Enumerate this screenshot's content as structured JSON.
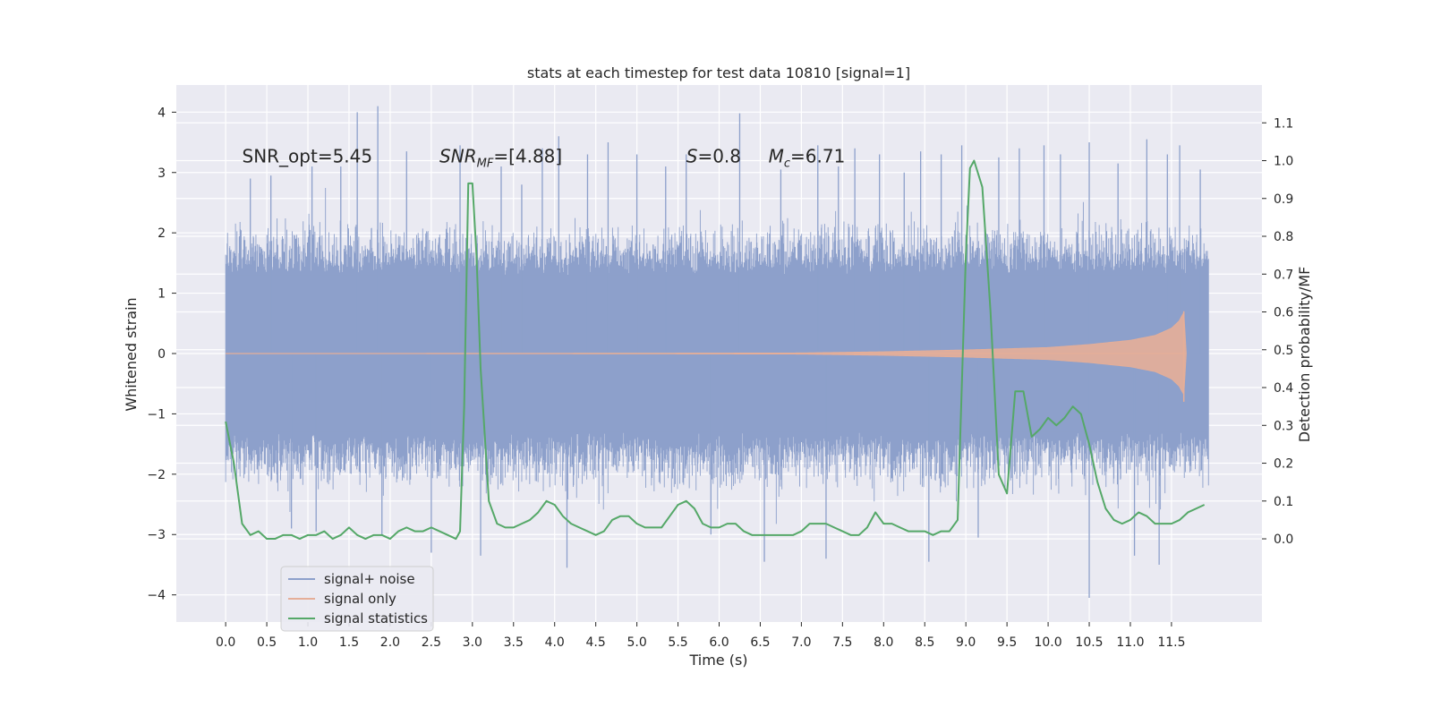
{
  "chart_data": {
    "type": "line",
    "title": "stats at each timestep for test data 10810 [signal=1]",
    "xlabel": "Time (s)",
    "ylabel": "Whitened strain",
    "ylabel_right": "Detection probability/MF",
    "xlim": [
      -0.6,
      12.6
    ],
    "ylim": [
      -4.45,
      4.45
    ],
    "ylim_right": [
      -0.22,
      1.2
    ],
    "x_ticks": [
      0.0,
      0.5,
      1.0,
      1.5,
      2.0,
      2.5,
      3.0,
      3.5,
      4.0,
      4.5,
      5.0,
      5.5,
      6.0,
      6.5,
      7.0,
      7.5,
      8.0,
      8.5,
      9.0,
      9.5,
      10.0,
      10.5,
      11.0,
      11.5
    ],
    "x_tick_labels": [
      "0.0",
      "0.5",
      "1.0",
      "1.5",
      "2.0",
      "2.5",
      "3.0",
      "3.5",
      "4.0",
      "4.5",
      "5.0",
      "5.5",
      "6.0",
      "6.5",
      "7.0",
      "7.5",
      "8.0",
      "8.5",
      "9.0",
      "9.5",
      "10.0",
      "10.5",
      "11.0",
      "11.5"
    ],
    "y_ticks": [
      -4,
      -3,
      -2,
      -1,
      0,
      1,
      2,
      3,
      4
    ],
    "y_tick_labels": [
      "−4",
      "−3",
      "−2",
      "−1",
      "0",
      "1",
      "2",
      "3",
      "4"
    ],
    "y_right_ticks": [
      0.0,
      0.1,
      0.2,
      0.3,
      0.4,
      0.5,
      0.6,
      0.7,
      0.8,
      0.9,
      1.0,
      1.1
    ],
    "y_right_tick_labels": [
      "0.0",
      "0.1",
      "0.2",
      "0.3",
      "0.4",
      "0.5",
      "0.6",
      "0.7",
      "0.8",
      "0.9",
      "1.0",
      "1.1"
    ],
    "grid": true,
    "legend_position": "lower-left",
    "annotations": [
      {
        "text": "SNR_opt=5.45",
        "x": 0.2,
        "y": 3.27
      },
      {
        "text": "SNR_MF=[4.88]",
        "x": 2.6,
        "y": 3.27
      },
      {
        "text": "S=0.8",
        "x": 5.6,
        "y": 3.27
      },
      {
        "text": "M_c=6.71",
        "x": 6.6,
        "y": 3.27
      }
    ],
    "series": [
      {
        "name": "signal+ noise",
        "axis": "left",
        "color": "#8da0cb",
        "x_range": [
          0.0,
          11.95
        ],
        "sample_rate": 2048,
        "envelope": {
          "core_upper": 1.3,
          "core_lower": -1.3,
          "typical_peak_upper": 2.1,
          "typical_peak_lower": -2.2
        },
        "peaks": [
          {
            "x": 0.3,
            "y": 2.9
          },
          {
            "x": 0.55,
            "y": 2.95
          },
          {
            "x": 0.8,
            "y": -2.9
          },
          {
            "x": 1.05,
            "y": 3.1
          },
          {
            "x": 1.1,
            "y": -2.95
          },
          {
            "x": 1.4,
            "y": 3.1
          },
          {
            "x": 1.6,
            "y": 4.0
          },
          {
            "x": 1.85,
            "y": 4.1
          },
          {
            "x": 1.9,
            "y": -3.0
          },
          {
            "x": 2.2,
            "y": 3.35
          },
          {
            "x": 2.5,
            "y": -3.3
          },
          {
            "x": 2.85,
            "y": 3.45
          },
          {
            "x": 3.1,
            "y": -3.35
          },
          {
            "x": 3.35,
            "y": 3.1
          },
          {
            "x": 3.6,
            "y": 2.8
          },
          {
            "x": 3.85,
            "y": 3.4
          },
          {
            "x": 4.05,
            "y": 3.6
          },
          {
            "x": 4.15,
            "y": -3.55
          },
          {
            "x": 4.4,
            "y": 3.3
          },
          {
            "x": 4.65,
            "y": 3.5
          },
          {
            "x": 5.0,
            "y": 3.3
          },
          {
            "x": 5.35,
            "y": 3.1
          },
          {
            "x": 5.6,
            "y": 3.3
          },
          {
            "x": 5.9,
            "y": -3.0
          },
          {
            "x": 6.25,
            "y": 3.98
          },
          {
            "x": 6.55,
            "y": -3.45
          },
          {
            "x": 6.75,
            "y": 3.05
          },
          {
            "x": 7.2,
            "y": 3.45
          },
          {
            "x": 7.3,
            "y": -3.4
          },
          {
            "x": 7.45,
            "y": 3.1
          },
          {
            "x": 7.65,
            "y": 3.4
          },
          {
            "x": 7.95,
            "y": 3.3
          },
          {
            "x": 8.25,
            "y": 3.0
          },
          {
            "x": 8.45,
            "y": 3.35
          },
          {
            "x": 8.55,
            "y": -3.45
          },
          {
            "x": 8.7,
            "y": 3.3
          },
          {
            "x": 8.95,
            "y": 3.45
          },
          {
            "x": 9.15,
            "y": -3.05
          },
          {
            "x": 9.4,
            "y": 3.25
          },
          {
            "x": 9.65,
            "y": 3.4
          },
          {
            "x": 9.95,
            "y": 3.45
          },
          {
            "x": 10.15,
            "y": 3.3
          },
          {
            "x": 10.5,
            "y": 3.5
          },
          {
            "x": 10.5,
            "y": -4.05
          },
          {
            "x": 10.85,
            "y": 3.15
          },
          {
            "x": 11.05,
            "y": -3.35
          },
          {
            "x": 11.2,
            "y": 3.55
          },
          {
            "x": 11.35,
            "y": -3.5
          },
          {
            "x": 11.45,
            "y": 3.3
          },
          {
            "x": 11.6,
            "y": 3.45
          },
          {
            "x": 11.85,
            "y": 3.05
          }
        ]
      },
      {
        "name": "signal only",
        "axis": "left",
        "color": "#e5ae98",
        "amplitude_envelope": [
          {
            "x": 0.0,
            "y": 0.0
          },
          {
            "x": 5.0,
            "y": 0.005
          },
          {
            "x": 7.0,
            "y": 0.01
          },
          {
            "x": 8.0,
            "y": 0.03
          },
          {
            "x": 9.0,
            "y": 0.06
          },
          {
            "x": 10.0,
            "y": 0.1
          },
          {
            "x": 10.5,
            "y": 0.15
          },
          {
            "x": 11.0,
            "y": 0.22
          },
          {
            "x": 11.3,
            "y": 0.3
          },
          {
            "x": 11.5,
            "y": 0.42
          },
          {
            "x": 11.6,
            "y": 0.55
          },
          {
            "x": 11.65,
            "y": 0.7
          },
          {
            "x": 11.68,
            "y": 0.0
          }
        ],
        "peak": {
          "x": 11.65,
          "y_max": 0.7,
          "y_min": -0.8
        }
      },
      {
        "name": "signal statistics",
        "axis": "right",
        "color": "#55a868",
        "x": [
          0.0,
          0.1,
          0.2,
          0.3,
          0.4,
          0.5,
          0.6,
          0.7,
          0.8,
          0.9,
          1.0,
          1.1,
          1.2,
          1.3,
          1.4,
          1.5,
          1.6,
          1.7,
          1.8,
          1.9,
          2.0,
          2.1,
          2.2,
          2.3,
          2.4,
          2.5,
          2.6,
          2.7,
          2.8,
          2.85,
          2.9,
          2.95,
          3.0,
          3.05,
          3.1,
          3.2,
          3.3,
          3.4,
          3.5,
          3.6,
          3.7,
          3.8,
          3.9,
          4.0,
          4.1,
          4.2,
          4.3,
          4.4,
          4.5,
          4.6,
          4.7,
          4.8,
          4.9,
          5.0,
          5.1,
          5.2,
          5.3,
          5.4,
          5.5,
          5.6,
          5.7,
          5.8,
          5.9,
          6.0,
          6.1,
          6.2,
          6.3,
          6.4,
          6.5,
          6.6,
          6.7,
          6.8,
          6.9,
          7.0,
          7.1,
          7.2,
          7.3,
          7.4,
          7.5,
          7.6,
          7.7,
          7.8,
          7.9,
          8.0,
          8.1,
          8.2,
          8.3,
          8.4,
          8.5,
          8.6,
          8.7,
          8.8,
          8.9,
          9.0,
          9.05,
          9.1,
          9.2,
          9.3,
          9.4,
          9.5,
          9.6,
          9.7,
          9.8,
          9.9,
          10.0,
          10.1,
          10.2,
          10.3,
          10.4,
          10.5,
          10.6,
          10.7,
          10.8,
          10.9,
          11.0,
          11.1,
          11.2,
          11.3,
          11.4,
          11.5,
          11.6,
          11.7,
          11.8,
          11.9
        ],
        "values": [
          0.31,
          0.2,
          0.04,
          0.01,
          0.02,
          0.0,
          0.0,
          0.01,
          0.01,
          0.0,
          0.01,
          0.01,
          0.02,
          0.0,
          0.01,
          0.03,
          0.01,
          0.0,
          0.01,
          0.01,
          0.0,
          0.02,
          0.03,
          0.02,
          0.02,
          0.03,
          0.02,
          0.01,
          0.0,
          0.02,
          0.35,
          0.94,
          0.94,
          0.75,
          0.45,
          0.1,
          0.04,
          0.03,
          0.03,
          0.04,
          0.05,
          0.07,
          0.1,
          0.09,
          0.06,
          0.04,
          0.03,
          0.02,
          0.01,
          0.02,
          0.05,
          0.06,
          0.06,
          0.04,
          0.03,
          0.03,
          0.03,
          0.06,
          0.09,
          0.1,
          0.08,
          0.04,
          0.03,
          0.03,
          0.04,
          0.04,
          0.02,
          0.01,
          0.01,
          0.01,
          0.01,
          0.01,
          0.01,
          0.02,
          0.04,
          0.04,
          0.04,
          0.03,
          0.02,
          0.01,
          0.01,
          0.03,
          0.07,
          0.04,
          0.04,
          0.03,
          0.02,
          0.02,
          0.02,
          0.01,
          0.02,
          0.02,
          0.05,
          0.75,
          0.98,
          1.0,
          0.93,
          0.6,
          0.17,
          0.12,
          0.39,
          0.39,
          0.27,
          0.29,
          0.32,
          0.3,
          0.32,
          0.35,
          0.33,
          0.25,
          0.15,
          0.08,
          0.05,
          0.04,
          0.05,
          0.07,
          0.06,
          0.04,
          0.04,
          0.04,
          0.05,
          0.07,
          0.08,
          0.09
        ]
      }
    ]
  }
}
